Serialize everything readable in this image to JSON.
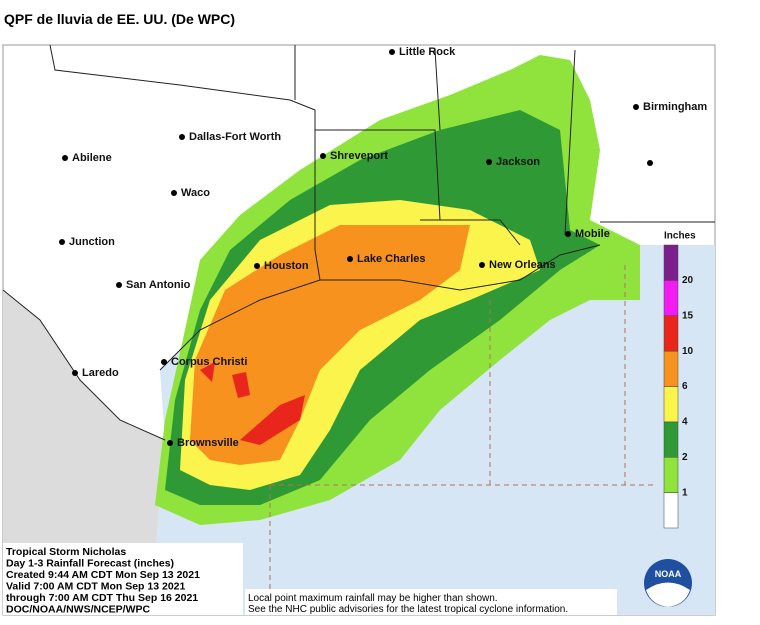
{
  "title": "QPF de lluvia de EE. UU. (De WPC)",
  "cities": [
    "Little Rock",
    "Birmingham",
    "Dallas-Fort Worth",
    "Abilene",
    "Shreveport",
    "Jackson",
    "Waco",
    "Junction",
    "Mobile",
    "Houston",
    "Lake Charles",
    "New Orleans",
    "San Antonio",
    "Corpus Christi",
    "Laredo",
    "Brownsville"
  ],
  "legend": {
    "title": "Inches",
    "labels": [
      1,
      2,
      4,
      6,
      10,
      15,
      20
    ]
  },
  "info": [
    "Tropical Storm Nicholas",
    "Day 1-3 Rainfall Forecast (inches)",
    "Created 9:44 AM CDT Mon Sep 13 2021",
    "Valid 7:00 AM CDT Mon Sep 13 2021",
    "through 7:00 AM CDT Thu Sep 16 2021",
    "DOC/NOAA/NWS/NCEP/WPC"
  ],
  "disclaimer": [
    "Local point maximum rainfall may be higher than shown.",
    "See the NHC public advisories for the latest tropical cyclone information."
  ],
  "logo": "NOAA"
}
